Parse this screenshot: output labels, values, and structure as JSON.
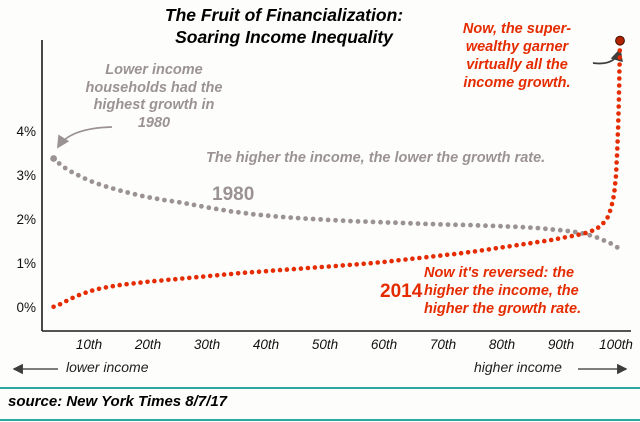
{
  "title": {
    "line1": "The Fruit of Financialization:",
    "line2": "Soaring Income Inequality"
  },
  "annotations": {
    "lower_income_1980": "Lower income households had the highest growth in 1980",
    "higher_lower": "The higher the income, the lower the growth rate.",
    "label_1980": "1980",
    "label_2014": "2014",
    "super_wealthy": "Now, the super-wealthy garner virtually all the income growth.",
    "reversed": "Now it's reversed: the higher the income, the higher the growth rate."
  },
  "axis": {
    "y_ticks": [
      "0%",
      "1%",
      "2%",
      "3%",
      "4%"
    ],
    "x_ticks": [
      "10th",
      "20th",
      "30th",
      "40th",
      "50th",
      "60th",
      "70th",
      "80th",
      "90th",
      "100th"
    ],
    "lower_income": "lower income",
    "higher_income": "higher income"
  },
  "source_line": "source: New York Times  8/7/17",
  "colors": {
    "red": "#e52b00",
    "gray": "#9b9393",
    "teal": "#2ba7a0",
    "axis": "#1c1c1c",
    "dark_arrow": "#3d3d3d"
  },
  "chart_data": {
    "type": "line",
    "render_style": "dotted points (one dot per increment)",
    "title": "The Fruit of Financialization: Soaring Income Inequality",
    "x_axis": {
      "unit": "income percentile",
      "ticks": [
        "10th",
        "20th",
        "30th",
        "40th",
        "50th",
        "60th",
        "70th",
        "80th",
        "90th",
        "100th"
      ],
      "range": [
        0,
        101
      ],
      "label_low": "lower income",
      "label_high": "higher income"
    },
    "y_axis": {
      "unit": "income growth rate",
      "ticks": [
        "0%",
        "1%",
        "2%",
        "3%",
        "4%"
      ],
      "range_pct": [
        0,
        6.3
      ]
    },
    "legend_position": "inline labels on curves",
    "grid": false,
    "series": [
      {
        "name": "1980",
        "color": "#9b9393",
        "points": [
          [
            4,
            3.42
          ],
          [
            5,
            3.3
          ],
          [
            6,
            3.2
          ],
          [
            7,
            3.12
          ],
          [
            8,
            3.05
          ],
          [
            10,
            2.92
          ],
          [
            12,
            2.82
          ],
          [
            15,
            2.7
          ],
          [
            18,
            2.6
          ],
          [
            20,
            2.54
          ],
          [
            23,
            2.47
          ],
          [
            26,
            2.41
          ],
          [
            30,
            2.31
          ],
          [
            34,
            2.22
          ],
          [
            38,
            2.15
          ],
          [
            42,
            2.1
          ],
          [
            46,
            2.06
          ],
          [
            50,
            2.03
          ],
          [
            54,
            2.0
          ],
          [
            58,
            1.98
          ],
          [
            62,
            1.96
          ],
          [
            66,
            1.94
          ],
          [
            70,
            1.92
          ],
          [
            74,
            1.91
          ],
          [
            78,
            1.89
          ],
          [
            82,
            1.87
          ],
          [
            86,
            1.84
          ],
          [
            90,
            1.79
          ],
          [
            92,
            1.76
          ],
          [
            94,
            1.71
          ],
          [
            96,
            1.63
          ],
          [
            98,
            1.52
          ],
          [
            99,
            1.45
          ],
          [
            100,
            1.36
          ]
        ]
      },
      {
        "name": "2014",
        "color": "#e52b00",
        "points": [
          [
            4,
            0.05
          ],
          [
            5,
            0.1
          ],
          [
            6,
            0.17
          ],
          [
            7,
            0.24
          ],
          [
            8,
            0.3
          ],
          [
            10,
            0.4
          ],
          [
            12,
            0.47
          ],
          [
            15,
            0.54
          ],
          [
            18,
            0.59
          ],
          [
            20,
            0.62
          ],
          [
            24,
            0.67
          ],
          [
            28,
            0.72
          ],
          [
            32,
            0.77
          ],
          [
            36,
            0.82
          ],
          [
            40,
            0.86
          ],
          [
            44,
            0.9
          ],
          [
            48,
            0.94
          ],
          [
            52,
            0.98
          ],
          [
            56,
            1.02
          ],
          [
            60,
            1.07
          ],
          [
            64,
            1.13
          ],
          [
            68,
            1.19
          ],
          [
            72,
            1.25
          ],
          [
            76,
            1.32
          ],
          [
            80,
            1.4
          ],
          [
            84,
            1.48
          ],
          [
            88,
            1.56
          ],
          [
            90,
            1.61
          ],
          [
            92,
            1.66
          ],
          [
            94,
            1.72
          ],
          [
            95,
            1.76
          ],
          [
            96,
            1.82
          ],
          [
            97,
            1.92
          ],
          [
            98,
            2.1
          ],
          [
            98.5,
            2.3
          ],
          [
            99,
            2.6
          ],
          [
            99.3,
            3.0
          ],
          [
            99.5,
            3.5
          ],
          [
            99.7,
            4.2
          ],
          [
            99.85,
            5.0
          ],
          [
            100,
            6.1
          ]
        ]
      }
    ]
  }
}
